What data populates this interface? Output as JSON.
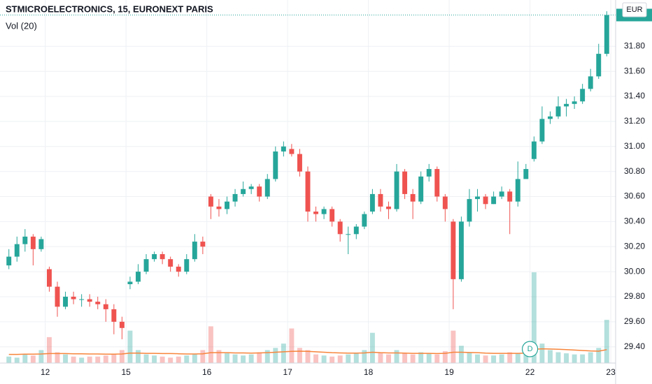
{
  "chart_data": {
    "type": "candlestick",
    "title": "STMICROELECTRONICS, 15, EURONEXT PARIS",
    "volume_label": "Vol (20)",
    "currency": "EUR",
    "marker_label": "D",
    "up_color": "#26a69a",
    "down_color": "#ef5350",
    "ma_color": "#f7853b",
    "xlim": [
      0.44,
      8.06
    ],
    "xticks": [
      {
        "value": 1,
        "label": "12"
      },
      {
        "value": 2,
        "label": "15"
      },
      {
        "value": 3,
        "label": "16"
      },
      {
        "value": 4,
        "label": "17"
      },
      {
        "value": 5,
        "label": "18"
      },
      {
        "value": 6,
        "label": "19"
      },
      {
        "value": 7,
        "label": "22"
      },
      {
        "value": 8,
        "label": "23"
      }
    ],
    "ylim": [
      29.27,
      32.17
    ],
    "yticks": [
      {
        "value": 29.4,
        "label": "29.40"
      },
      {
        "value": 29.6,
        "label": "29.60"
      },
      {
        "value": 29.8,
        "label": "29.80"
      },
      {
        "value": 30,
        "label": "30.00"
      },
      {
        "value": 30.2,
        "label": "30.20"
      },
      {
        "value": 30.4,
        "label": "30.40"
      },
      {
        "value": 30.6,
        "label": "30.60"
      },
      {
        "value": 30.8,
        "label": "30.80"
      },
      {
        "value": 31,
        "label": "31.00"
      },
      {
        "value": 31.2,
        "label": "31.20"
      },
      {
        "value": 31.4,
        "label": "31.40"
      },
      {
        "value": 31.6,
        "label": "31.60"
      },
      {
        "value": 31.8,
        "label": "31.80"
      }
    ],
    "marker_x": 7,
    "x": [
      0.55,
      0.65,
      0.75,
      0.85,
      0.95,
      1.05,
      1.15,
      1.25,
      1.35,
      1.45,
      1.55,
      1.65,
      1.75,
      1.85,
      1.95,
      2.05,
      2.15,
      2.25,
      2.35,
      2.45,
      2.55,
      2.65,
      2.75,
      2.85,
      2.95,
      3.05,
      3.15,
      3.25,
      3.35,
      3.45,
      3.55,
      3.65,
      3.75,
      3.85,
      3.95,
      4.05,
      4.15,
      4.25,
      4.35,
      4.45,
      4.55,
      4.65,
      4.75,
      4.85,
      4.95,
      5.05,
      5.15,
      5.25,
      5.35,
      5.45,
      5.55,
      5.65,
      5.75,
      5.85,
      5.95,
      6.05,
      6.15,
      6.25,
      6.35,
      6.45,
      6.55,
      6.65,
      6.75,
      6.85,
      6.95,
      7.05,
      7.15,
      7.25,
      7.35,
      7.45,
      7.55,
      7.65,
      7.75,
      7.85,
      7.95
    ],
    "open": [
      30.05,
      30.12,
      30.22,
      30.28,
      30.18,
      30.02,
      29.88,
      29.72,
      29.8,
      29.78,
      29.78,
      29.76,
      29.74,
      29.7,
      29.6,
      29.9,
      29.92,
      30.0,
      30.1,
      30.14,
      30.1,
      30.04,
      30.0,
      30.1,
      30.24,
      30.6,
      30.52,
      30.5,
      30.56,
      30.62,
      30.66,
      30.68,
      30.6,
      30.74,
      30.96,
      30.98,
      30.94,
      30.8,
      30.48,
      30.46,
      30.5,
      30.4,
      30.3,
      30.3,
      30.36,
      30.48,
      30.62,
      30.52,
      30.5,
      30.8,
      30.62,
      30.56,
      30.76,
      30.82,
      30.6,
      30.4,
      29.94,
      30.4,
      30.58,
      30.6,
      30.54,
      30.6,
      30.64,
      30.56,
      30.74,
      30.9,
      31.04,
      31.22,
      31.24,
      31.32,
      31.34,
      31.36,
      31.46,
      31.56,
      31.74
    ],
    "high": [
      30.18,
      30.28,
      30.34,
      30.3,
      30.28,
      30.04,
      29.92,
      29.84,
      29.84,
      29.82,
      29.82,
      29.8,
      29.78,
      29.74,
      29.64,
      29.96,
      30.06,
      30.14,
      30.16,
      30.16,
      30.12,
      30.06,
      30.14,
      30.3,
      30.28,
      30.62,
      30.58,
      30.6,
      30.66,
      30.72,
      30.7,
      30.7,
      30.78,
      31.0,
      31.04,
      31.02,
      30.98,
      30.84,
      30.52,
      30.52,
      30.52,
      30.42,
      30.36,
      30.38,
      30.48,
      30.66,
      30.66,
      30.56,
      30.86,
      30.82,
      30.66,
      30.8,
      30.86,
      30.84,
      30.62,
      30.42,
      30.44,
      30.66,
      30.66,
      30.62,
      30.64,
      30.68,
      30.66,
      30.88,
      30.86,
      31.08,
      31.32,
      31.28,
      31.4,
      31.38,
      31.4,
      31.5,
      31.62,
      31.82,
      32.08
    ],
    "low": [
      30.02,
      30.08,
      30.16,
      30.05,
      30.16,
      29.84,
      29.64,
      29.7,
      29.74,
      29.72,
      29.72,
      29.7,
      29.6,
      29.5,
      29.46,
      29.86,
      29.9,
      29.98,
      30.08,
      30.06,
      30.0,
      29.96,
      29.98,
      30.08,
      30.14,
      30.42,
      30.44,
      30.46,
      30.52,
      30.6,
      30.62,
      30.56,
      30.58,
      30.72,
      30.92,
      30.92,
      30.76,
      30.4,
      30.4,
      30.42,
      30.36,
      30.24,
      30.14,
      30.26,
      30.34,
      30.46,
      30.48,
      30.42,
      30.48,
      30.58,
      30.42,
      30.54,
      30.72,
      30.56,
      30.4,
      29.7,
      29.92,
      30.36,
      30.48,
      30.5,
      30.54,
      30.58,
      30.3,
      30.52,
      30.76,
      30.88,
      31.02,
      31.18,
      31.22,
      31.24,
      31.3,
      31.34,
      31.44,
      31.54,
      31.72
    ],
    "close": [
      30.12,
      30.22,
      30.28,
      30.18,
      30.26,
      29.88,
      29.72,
      29.8,
      29.78,
      29.78,
      29.76,
      29.74,
      29.7,
      29.6,
      29.55,
      29.92,
      30.0,
      30.1,
      30.14,
      30.1,
      30.04,
      30.0,
      30.1,
      30.24,
      30.2,
      30.52,
      30.5,
      30.56,
      30.62,
      30.66,
      30.68,
      30.6,
      30.74,
      30.96,
      31.0,
      30.94,
      30.8,
      30.48,
      30.46,
      30.5,
      30.4,
      30.3,
      30.3,
      30.36,
      30.46,
      30.62,
      30.52,
      30.5,
      30.8,
      30.62,
      30.56,
      30.76,
      30.82,
      30.6,
      30.5,
      29.94,
      30.4,
      30.58,
      30.6,
      30.54,
      30.6,
      30.64,
      30.56,
      30.74,
      30.82,
      31.04,
      31.22,
      31.24,
      31.32,
      31.34,
      31.36,
      31.46,
      31.56,
      31.74,
      32.05
    ],
    "volume": [
      30,
      25,
      40,
      35,
      60,
      120,
      50,
      40,
      30,
      25,
      30,
      30,
      35,
      40,
      60,
      150,
      60,
      40,
      35,
      30,
      25,
      30,
      35,
      40,
      60,
      170,
      60,
      45,
      40,
      35,
      40,
      50,
      60,
      70,
      90,
      160,
      70,
      60,
      40,
      35,
      30,
      35,
      40,
      45,
      60,
      140,
      50,
      40,
      60,
      45,
      40,
      50,
      45,
      40,
      55,
      150,
      80,
      50,
      40,
      35,
      35,
      40,
      50,
      45,
      60,
      420,
      90,
      60,
      50,
      45,
      40,
      40,
      50,
      70,
      200
    ],
    "volume_ma": [
      40,
      40,
      41,
      41,
      42,
      44,
      44,
      44,
      43,
      43,
      42,
      42,
      41,
      41,
      42,
      46,
      46,
      45,
      45,
      44,
      44,
      43,
      42,
      42,
      43,
      48,
      48,
      48,
      47,
      47,
      46,
      47,
      48,
      50,
      52,
      54,
      55,
      54,
      52,
      50,
      48,
      47,
      46,
      46,
      47,
      50,
      48,
      47,
      47,
      46,
      45,
      45,
      45,
      44,
      45,
      50,
      50,
      49,
      48,
      46,
      45,
      45,
      45,
      45,
      46,
      64,
      66,
      65,
      64,
      62,
      60,
      58,
      56,
      55,
      62
    ]
  }
}
